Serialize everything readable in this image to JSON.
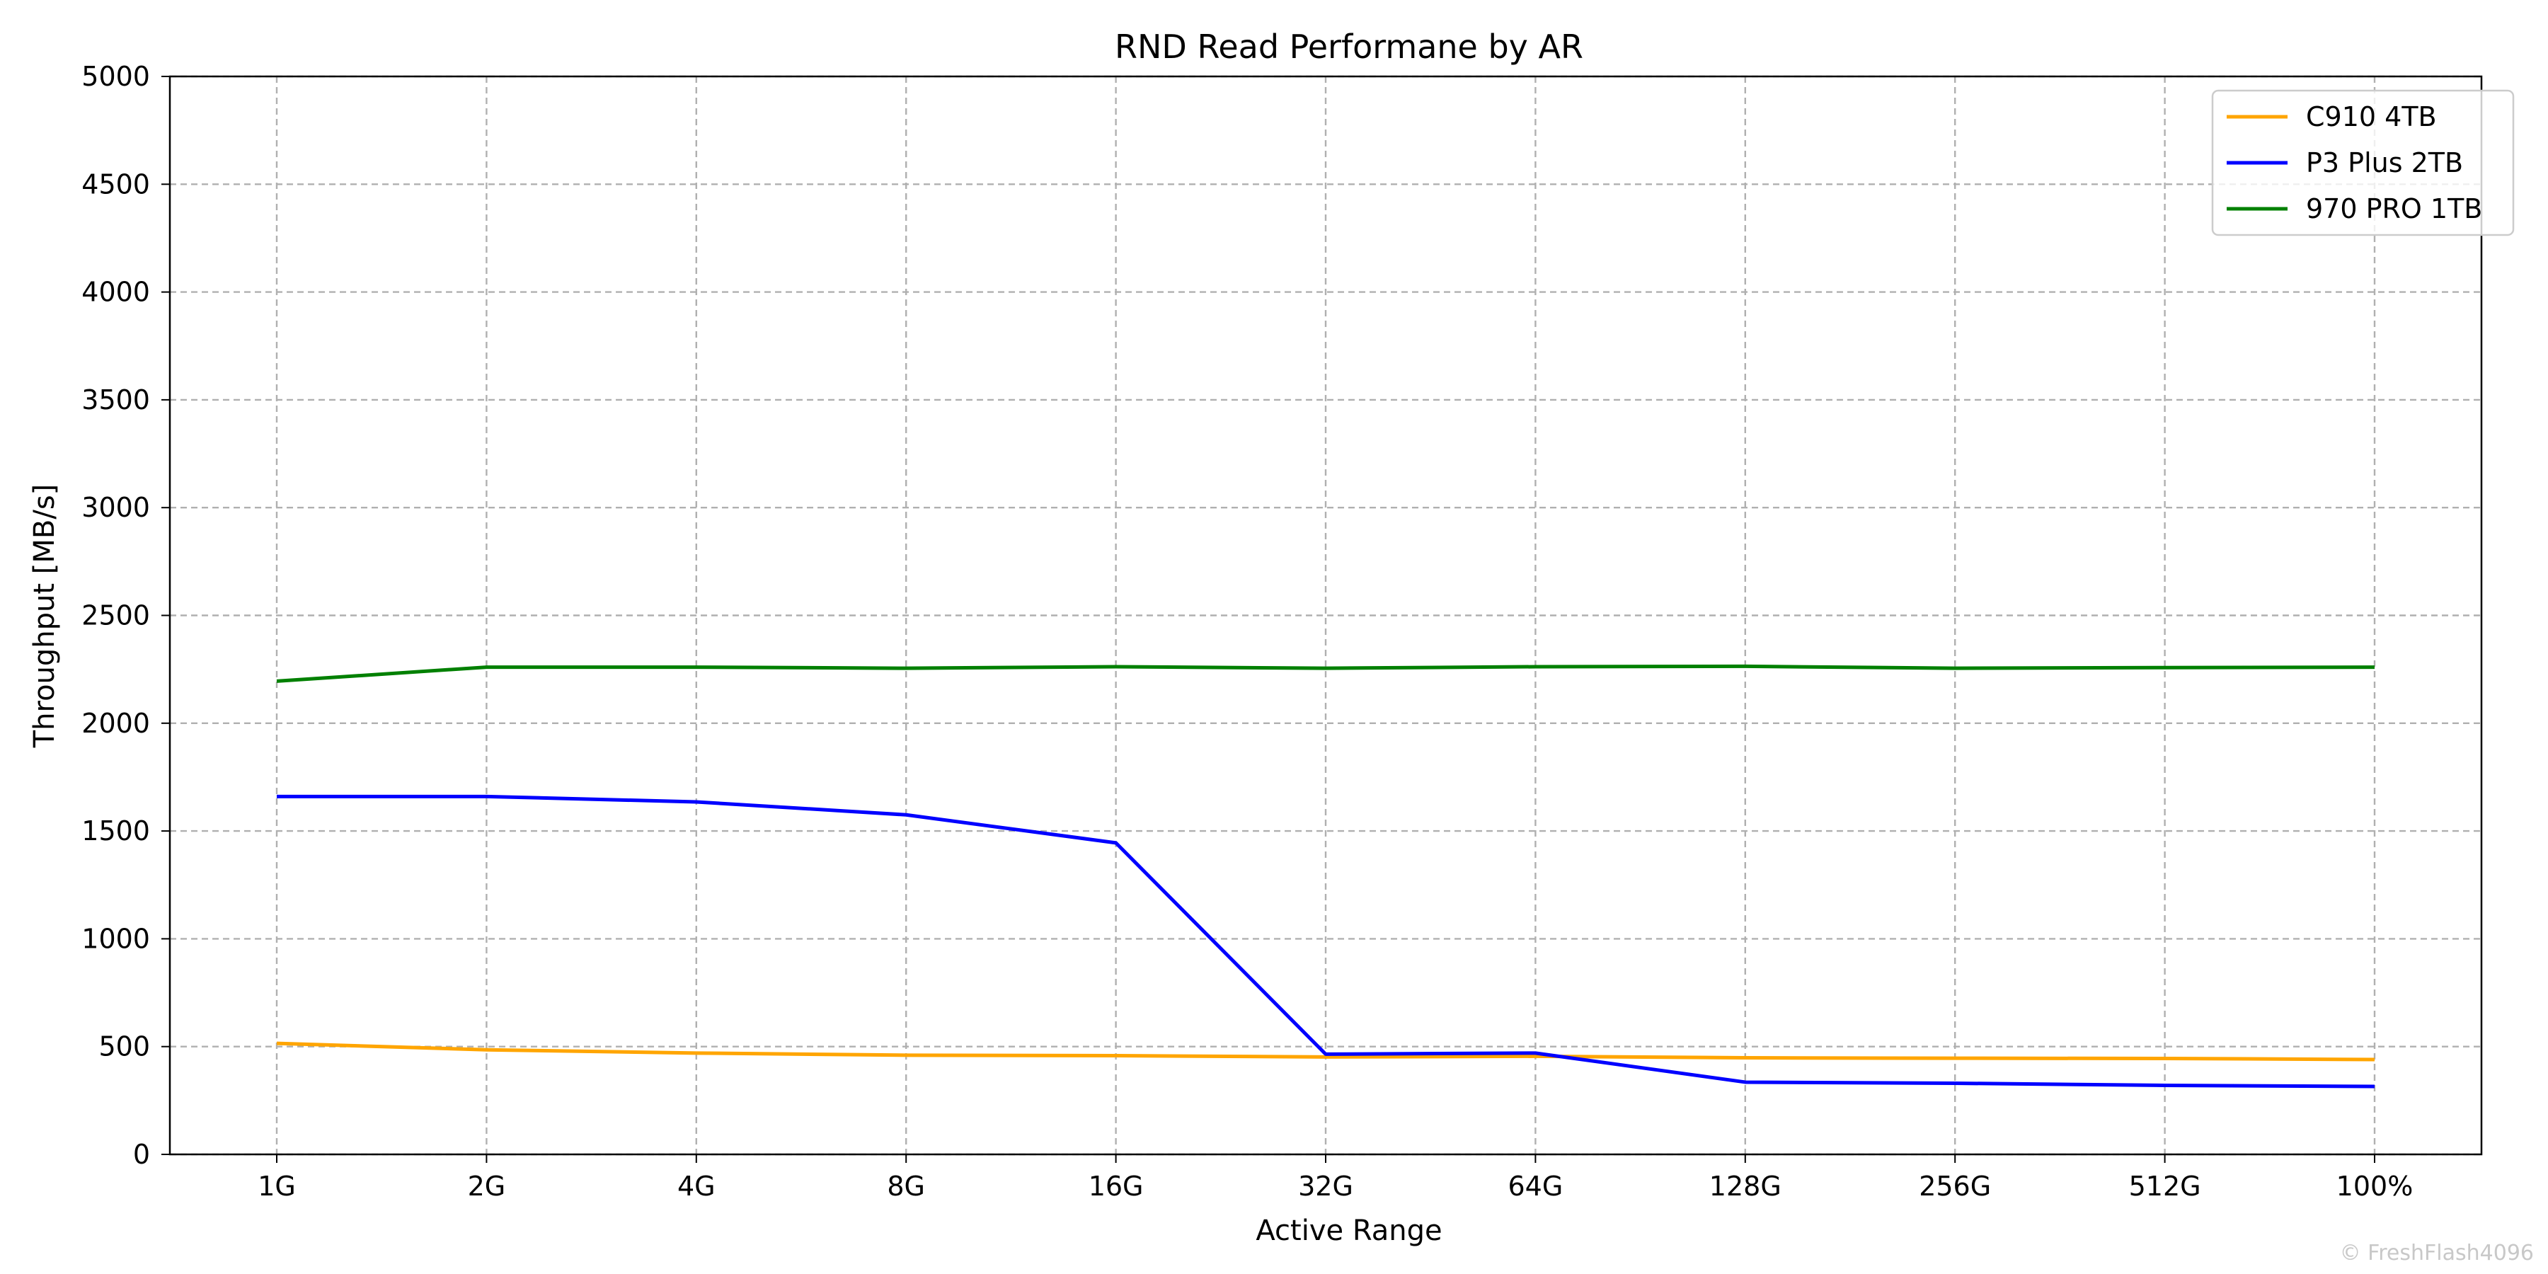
{
  "chart_data": {
    "type": "line",
    "title": "RND Read Performane by AR",
    "xlabel": "Active Range",
    "ylabel": "Throughput [MB/s]",
    "categories": [
      "1G",
      "2G",
      "4G",
      "8G",
      "16G",
      "32G",
      "64G",
      "128G",
      "256G",
      "512G",
      "100%"
    ],
    "ylim": [
      0,
      5000
    ],
    "yticks": [
      0,
      500,
      1000,
      1500,
      2000,
      2500,
      3000,
      3500,
      4000,
      4500,
      5000
    ],
    "grid": true,
    "legend_position": "top-right",
    "series": [
      {
        "name": "C910 4TB",
        "color": "#ffa500",
        "values": [
          515,
          485,
          470,
          460,
          458,
          452,
          455,
          448,
          446,
          445,
          440
        ]
      },
      {
        "name": "P3 Plus 2TB",
        "color": "#0000ff",
        "values": [
          1660,
          1660,
          1635,
          1575,
          1445,
          465,
          470,
          335,
          330,
          320,
          315
        ]
      },
      {
        "name": "970 PRO 1TB",
        "color": "#008000",
        "values": [
          2195,
          2260,
          2260,
          2255,
          2262,
          2255,
          2262,
          2264,
          2255,
          2258,
          2260
        ]
      }
    ]
  },
  "watermark": "© FreshFlash4096"
}
